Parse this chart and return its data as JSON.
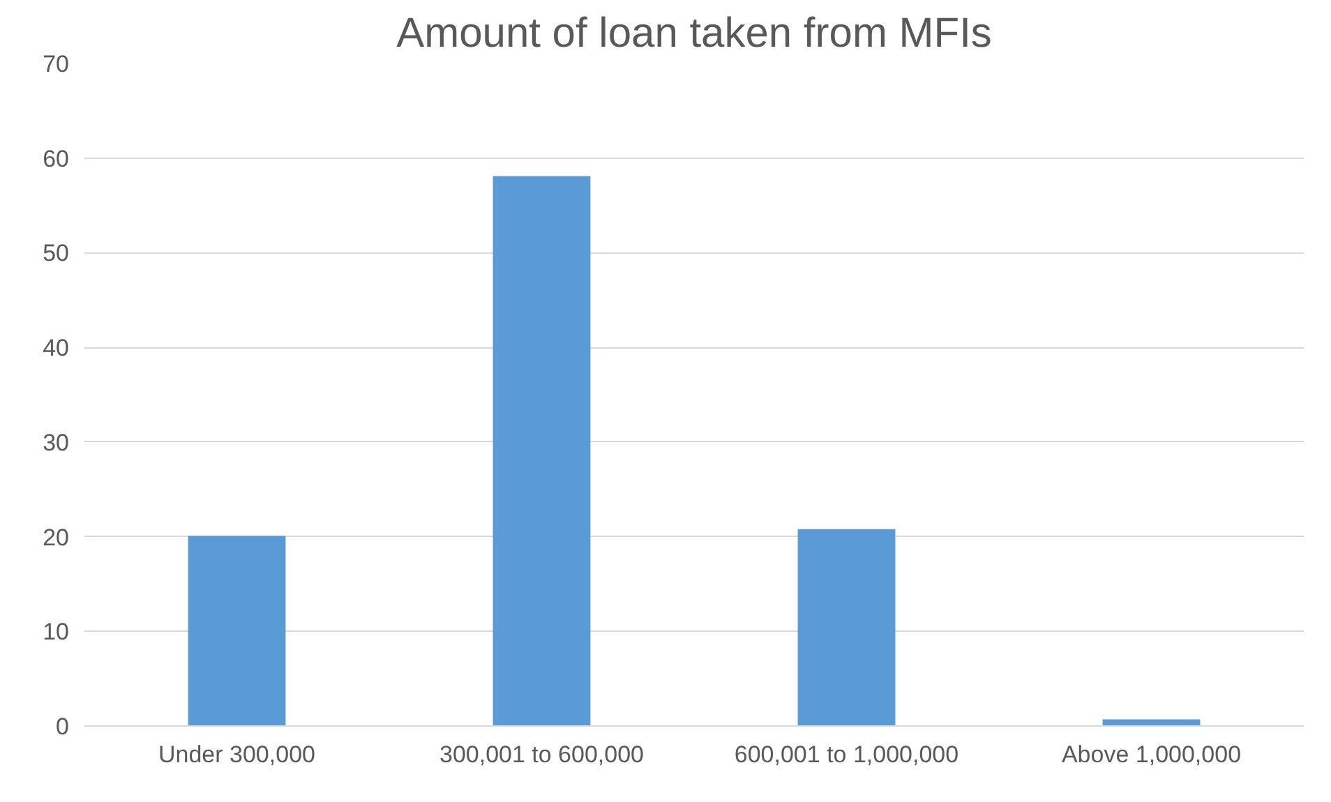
{
  "chart_data": {
    "type": "bar",
    "title": "Amount of loan taken from MFIs",
    "categories": [
      "Under 300,000",
      "300,001 to 600,000",
      "600,001 to 1,000,000",
      "Above 1,000,000"
    ],
    "values": [
      20.1,
      58.1,
      20.8,
      0.7
    ],
    "color": "#5b9bd5",
    "ylim": [
      0,
      70
    ],
    "yticks": [
      0,
      10,
      20,
      30,
      40,
      50,
      60,
      70
    ],
    "grid": "y"
  }
}
